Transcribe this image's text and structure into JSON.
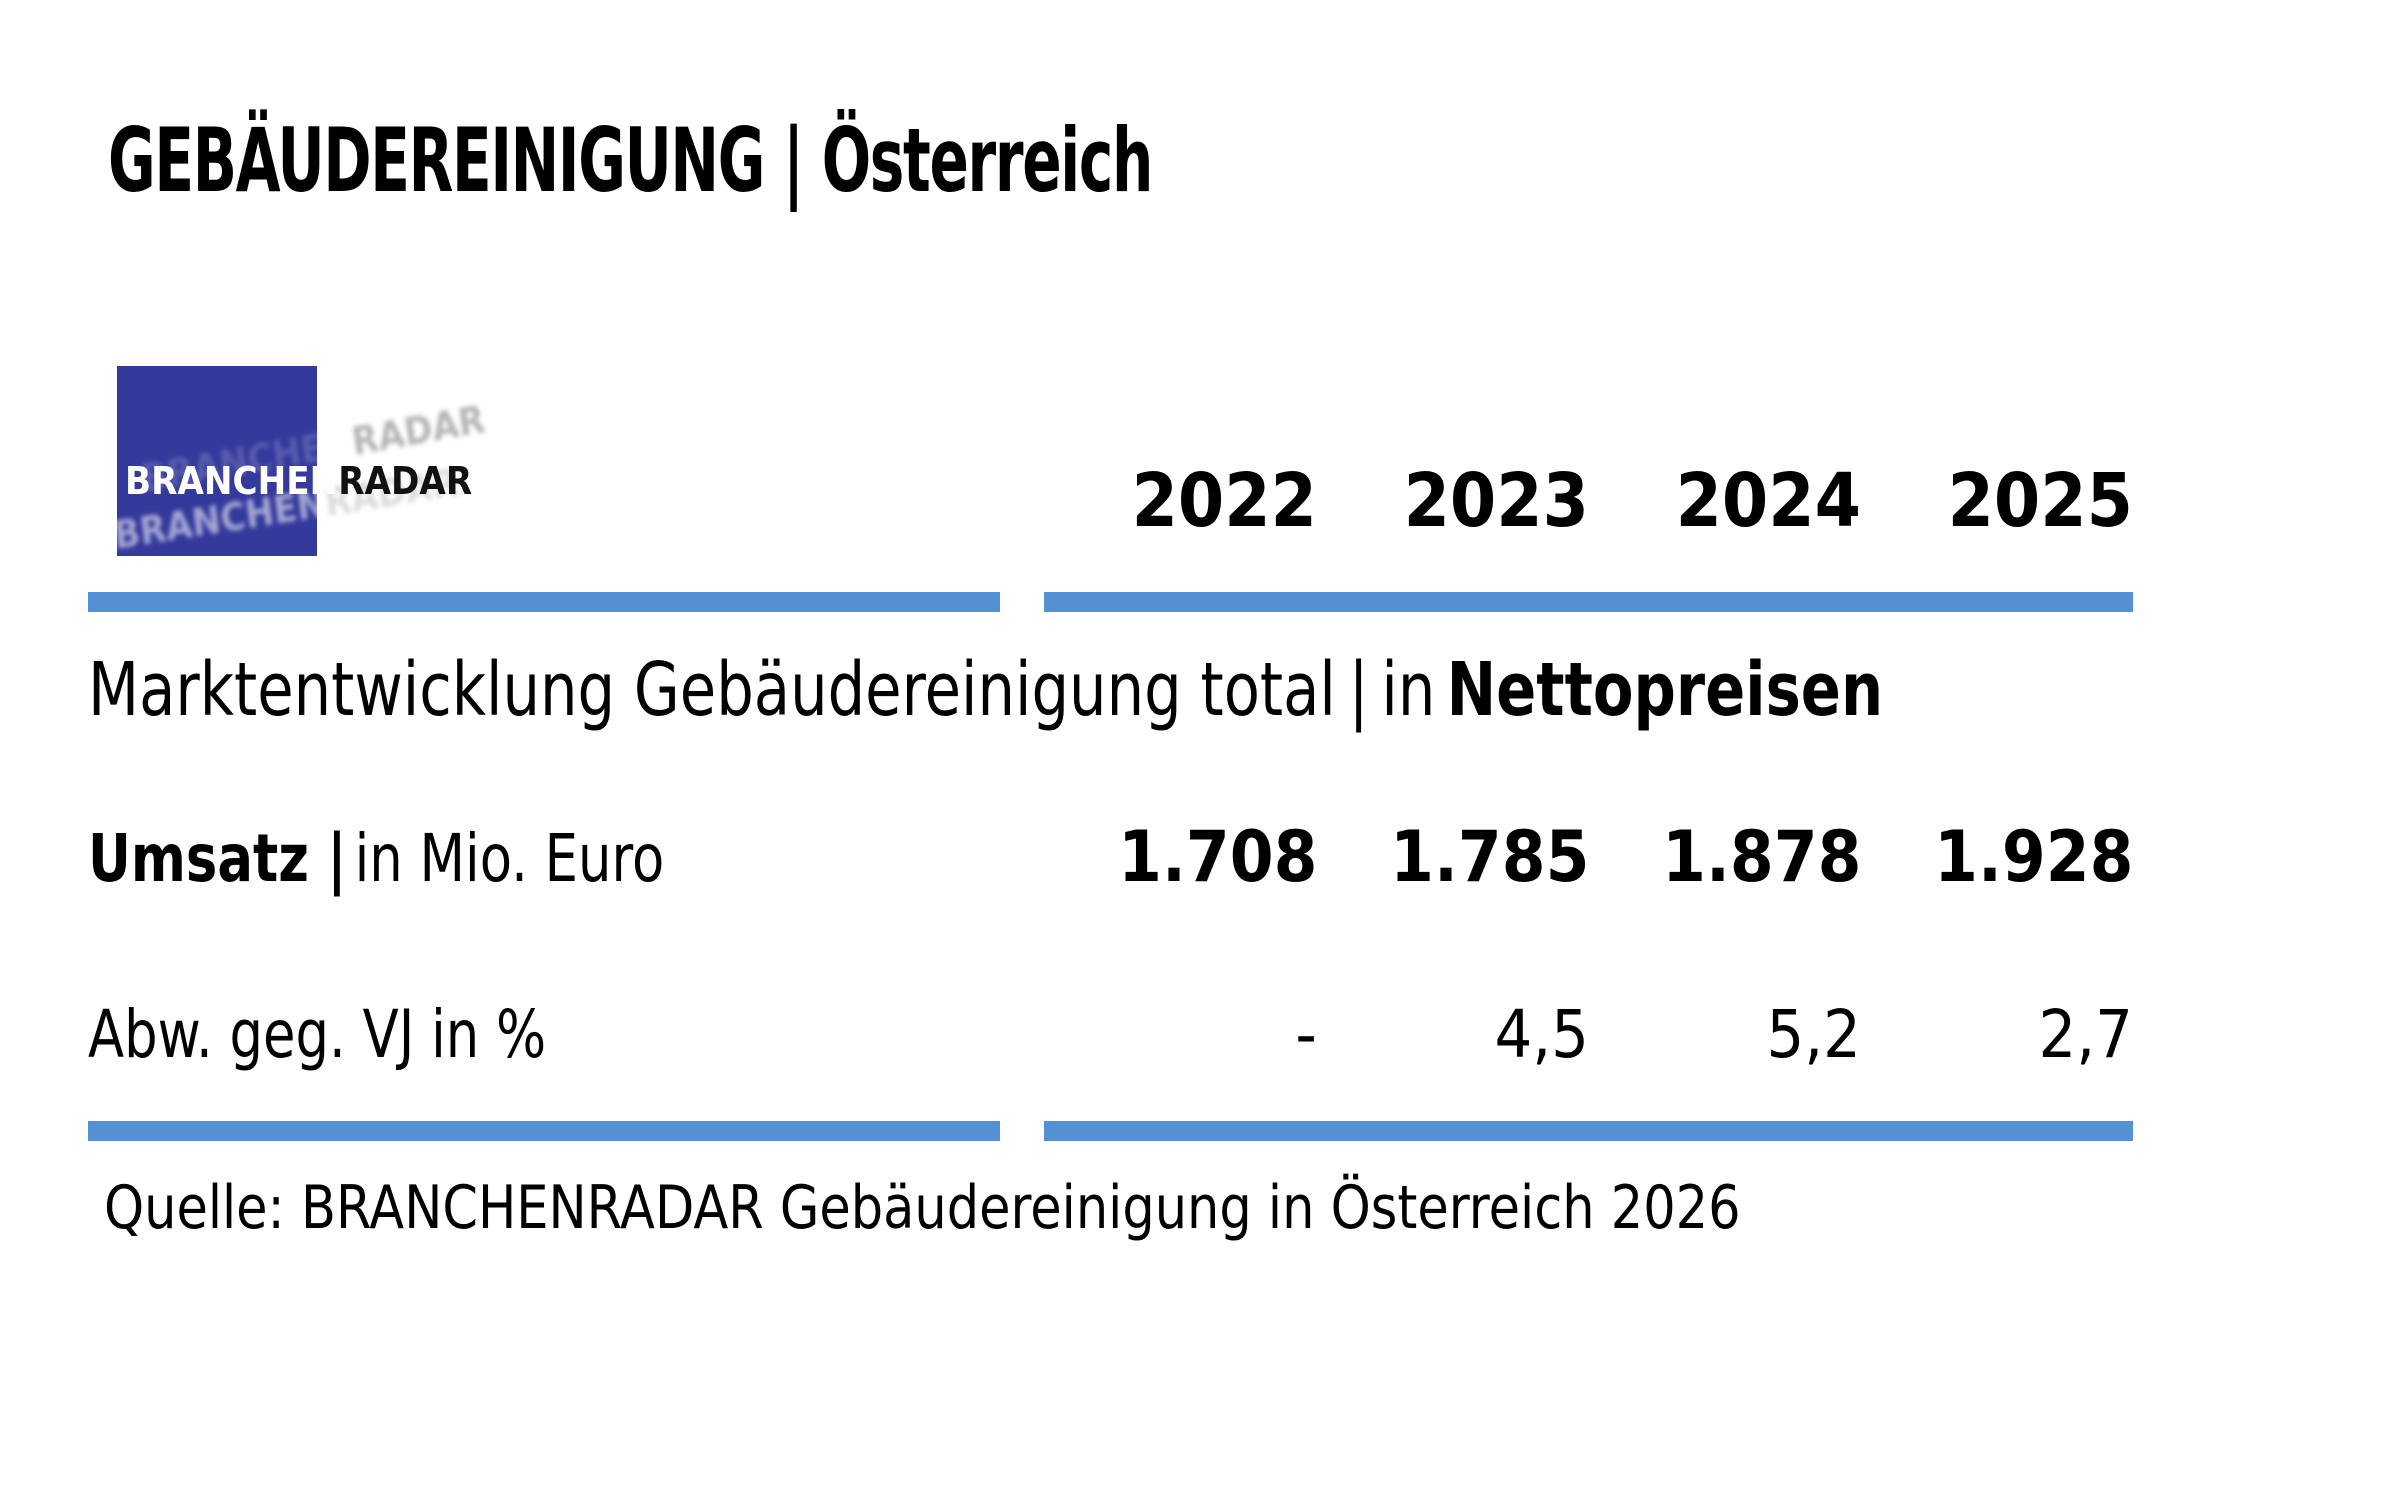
{
  "title": {
    "full": "GEBÄUDEREINIGUNG | Österreich"
  },
  "logo": {
    "part1": "BRANCHEN",
    "part2": "RADAR",
    "square_color": "#34399c"
  },
  "table": {
    "years": [
      "2022",
      "2023",
      "2024",
      "2025"
    ],
    "section_header": {
      "text_regular": "Marktentwicklung Gebäudereinigung total",
      "separator": "|",
      "text_mid": "in",
      "text_bold": "Nettopreisen"
    },
    "rows": [
      {
        "label_bold": "Umsatz |",
        "label_regular": "in Mio. Euro",
        "values": [
          "1.708",
          "1.785",
          "1.878",
          "1.928"
        ]
      },
      {
        "label_bold": "",
        "label_regular": "Abw. geg. VJ in %",
        "values": [
          "-",
          "4,5",
          "5,2",
          "2,7"
        ]
      }
    ]
  },
  "source": "Quelle: BRANCHENRADAR Gebäudereinigung in Österreich 2026",
  "colors": {
    "rule_blue": "#5590d5",
    "logo_blue": "#34399c",
    "text": "#000000"
  },
  "chart_data": {
    "type": "table",
    "title": "GEBÄUDEREINIGUNG | Österreich",
    "subtitle": "Marktentwicklung Gebäudereinigung total | in Nettopreisen",
    "categories": [
      2022,
      2023,
      2024,
      2025
    ],
    "series": [
      {
        "name": "Umsatz | in Mio. Euro",
        "values": [
          1708,
          1785,
          1878,
          1928
        ]
      },
      {
        "name": "Abw. geg. VJ in %",
        "values": [
          null,
          4.5,
          5.2,
          2.7
        ]
      }
    ],
    "source": "Quelle: BRANCHENRADAR Gebäudereinigung in Österreich 2026"
  }
}
